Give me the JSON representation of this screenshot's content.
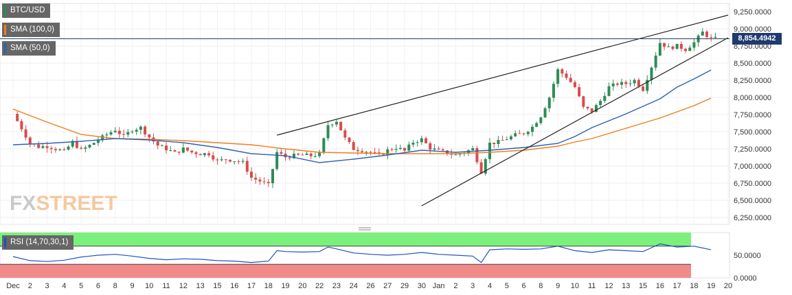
{
  "legend": {
    "symbol": "BTC/USD",
    "sma100": "SMA (100,0)",
    "sma50": "SMA (50,0)",
    "rsi": "RSI (14,70,30,1)"
  },
  "watermark": {
    "part1": "FX",
    "part2": "STREET"
  },
  "current_price": "8,854.4942",
  "colors": {
    "candle_up": "#2e8b57",
    "candle_down": "#d94b4b",
    "sma100": "#f07d1a",
    "sma50": "#2a62b5",
    "trendline": "#222222",
    "price_line": "#1f3a6e",
    "rsi_line": "#1f4fc7",
    "rsi_overbought": "#7cf07c",
    "rsi_oversold": "#f28a8a"
  },
  "chart_data": [
    {
      "type": "candlestick",
      "title": "BTC/USD",
      "y_axis": {
        "ticks": [
          "9,250.0000",
          "9,000.0000",
          "8,750.0000",
          "8,500.0000",
          "8,250.0000",
          "8,000.0000",
          "7,750.0000",
          "7,500.0000",
          "7,250.0000",
          "7,000.0000",
          "6,750.0000",
          "6,500.0000",
          "6,250.0000"
        ],
        "tick_values": [
          9250,
          9000,
          8750,
          8500,
          8250,
          8000,
          7750,
          7500,
          7250,
          7000,
          6750,
          6500,
          6250
        ],
        "range": [
          6150,
          9370
        ]
      },
      "x_axis": {
        "labels": [
          "Dec",
          "2",
          "3",
          "4",
          "5",
          "6",
          "8",
          "9",
          "10",
          "11",
          "12",
          "13",
          "15",
          "16",
          "17",
          "18",
          "19",
          "20",
          "22",
          "23",
          "24",
          "26",
          "27",
          "29",
          "30",
          "Jan",
          "2",
          "3",
          "4",
          "5",
          "6",
          "8",
          "9",
          "10",
          "11",
          "12",
          "13",
          "15",
          "16",
          "17",
          "18",
          "19",
          "20"
        ],
        "index_range": [
          0,
          42
        ]
      },
      "close_path": [
        [
          0,
          7760
        ],
        [
          0.5,
          7550
        ],
        [
          1,
          7330
        ],
        [
          1.5,
          7280
        ],
        [
          2,
          7290
        ],
        [
          2.5,
          7250
        ],
        [
          3,
          7210
        ],
        [
          3.5,
          7350
        ],
        [
          4,
          7230
        ],
        [
          4.5,
          7300
        ],
        [
          5,
          7380
        ],
        [
          5.5,
          7460
        ],
        [
          6,
          7530
        ],
        [
          6.5,
          7430
        ],
        [
          7,
          7530
        ],
        [
          7.5,
          7560
        ],
        [
          8,
          7420
        ],
        [
          8.5,
          7300
        ],
        [
          9,
          7250
        ],
        [
          9.5,
          7190
        ],
        [
          10,
          7250
        ],
        [
          10.5,
          7200
        ],
        [
          11,
          7180
        ],
        [
          11.5,
          7180
        ],
        [
          12,
          7070
        ],
        [
          12.5,
          7100
        ],
        [
          13,
          7080
        ],
        [
          13.5,
          7050
        ],
        [
          14,
          6830
        ],
        [
          14.5,
          6780
        ],
        [
          15,
          6720
        ],
        [
          15.5,
          7200
        ],
        [
          16,
          7130
        ],
        [
          16.5,
          7150
        ],
        [
          17,
          7160
        ],
        [
          17.5,
          7150
        ],
        [
          18,
          7170
        ],
        [
          18.5,
          7600
        ],
        [
          19,
          7660
        ],
        [
          19.5,
          7400
        ],
        [
          20,
          7250
        ],
        [
          20.5,
          7230
        ],
        [
          21,
          7200
        ],
        [
          21.5,
          7150
        ],
        [
          22,
          7230
        ],
        [
          22.5,
          7270
        ],
        [
          23,
          7220
        ],
        [
          23.5,
          7350
        ],
        [
          24,
          7390
        ],
        [
          24.5,
          7260
        ],
        [
          25,
          7220
        ],
        [
          25.5,
          7190
        ],
        [
          26,
          7160
        ],
        [
          26.5,
          7200
        ],
        [
          27,
          7250
        ],
        [
          27.5,
          6920
        ],
        [
          28,
          7330
        ],
        [
          28.5,
          7350
        ],
        [
          29,
          7400
        ],
        [
          29.5,
          7450
        ],
        [
          30,
          7480
        ],
        [
          30.5,
          7570
        ],
        [
          31,
          7730
        ],
        [
          31.5,
          8000
        ],
        [
          32,
          8400
        ],
        [
          32.5,
          8300
        ],
        [
          33,
          8150
        ],
        [
          33.5,
          7850
        ],
        [
          34,
          7800
        ],
        [
          34.5,
          7950
        ],
        [
          35,
          8150
        ],
        [
          35.5,
          8200
        ],
        [
          36,
          8200
        ],
        [
          36.5,
          8250
        ],
        [
          37,
          8120
        ],
        [
          37.5,
          8450
        ],
        [
          38,
          8800
        ],
        [
          38.5,
          8720
        ],
        [
          39,
          8750
        ],
        [
          39.5,
          8700
        ],
        [
          40,
          8800
        ],
        [
          40.5,
          8950
        ],
        [
          41,
          8854.49
        ]
      ],
      "sma100": [
        [
          0,
          7830
        ],
        [
          2,
          7640
        ],
        [
          4,
          7460
        ],
        [
          6,
          7400
        ],
        [
          8,
          7390
        ],
        [
          10,
          7370
        ],
        [
          12,
          7340
        ],
        [
          14,
          7310
        ],
        [
          16,
          7250
        ],
        [
          18,
          7200
        ],
        [
          20,
          7190
        ],
        [
          22,
          7180
        ],
        [
          24,
          7180
        ],
        [
          26,
          7180
        ],
        [
          28,
          7200
        ],
        [
          30,
          7230
        ],
        [
          32,
          7290
        ],
        [
          33,
          7350
        ],
        [
          34,
          7400
        ],
        [
          36,
          7550
        ],
        [
          38,
          7700
        ],
        [
          40,
          7880
        ],
        [
          41,
          7990
        ]
      ],
      "sma50": [
        [
          0,
          7310
        ],
        [
          2,
          7330
        ],
        [
          4,
          7360
        ],
        [
          6,
          7400
        ],
        [
          8,
          7380
        ],
        [
          10,
          7340
        ],
        [
          12,
          7270
        ],
        [
          14,
          7180
        ],
        [
          16,
          7150
        ],
        [
          18,
          7050
        ],
        [
          20,
          7100
        ],
        [
          22,
          7160
        ],
        [
          24,
          7230
        ],
        [
          26,
          7200
        ],
        [
          28,
          7230
        ],
        [
          30,
          7270
        ],
        [
          31,
          7300
        ],
        [
          32,
          7330
        ],
        [
          33,
          7430
        ],
        [
          34,
          7560
        ],
        [
          36,
          7760
        ],
        [
          38,
          7980
        ],
        [
          39,
          8150
        ],
        [
          40,
          8270
        ],
        [
          41,
          8400
        ]
      ],
      "trendlines": [
        {
          "from": [
            15.5,
            7450
          ],
          "to": [
            42,
            9200
          ]
        },
        {
          "from": [
            24,
            6420
          ],
          "to": [
            42,
            8870
          ]
        }
      ],
      "current_price": 8854.4942
    },
    {
      "type": "line",
      "title": "RSI (14,70,30,1)",
      "y_axis": {
        "ticks": [
          "50.0000",
          "0.0000"
        ],
        "tick_values": [
          50,
          0
        ],
        "range": [
          0,
          100
        ]
      },
      "overbought": 70,
      "oversold": 30,
      "rsi": [
        [
          0,
          47
        ],
        [
          1,
          38
        ],
        [
          2,
          36
        ],
        [
          3,
          39
        ],
        [
          4,
          46
        ],
        [
          5,
          50
        ],
        [
          6,
          52
        ],
        [
          7,
          48
        ],
        [
          8,
          43
        ],
        [
          9,
          40
        ],
        [
          10,
          42
        ],
        [
          11,
          41
        ],
        [
          12,
          38
        ],
        [
          13,
          37
        ],
        [
          14,
          34
        ],
        [
          15,
          37
        ],
        [
          15.5,
          60
        ],
        [
          16,
          58
        ],
        [
          17,
          57
        ],
        [
          18,
          58
        ],
        [
          18.5,
          68
        ],
        [
          19,
          64
        ],
        [
          20,
          55
        ],
        [
          21,
          52
        ],
        [
          22,
          50
        ],
        [
          23,
          52
        ],
        [
          24,
          56
        ],
        [
          25,
          52
        ],
        [
          26,
          50
        ],
        [
          27,
          48
        ],
        [
          27.5,
          34
        ],
        [
          28,
          62
        ],
        [
          29,
          64
        ],
        [
          30,
          63
        ],
        [
          31,
          64
        ],
        [
          32,
          70
        ],
        [
          33,
          60
        ],
        [
          34,
          56
        ],
        [
          35,
          62
        ],
        [
          36,
          60
        ],
        [
          37,
          58
        ],
        [
          38,
          75
        ],
        [
          39,
          68
        ],
        [
          40,
          70
        ],
        [
          41,
          62
        ]
      ]
    }
  ]
}
